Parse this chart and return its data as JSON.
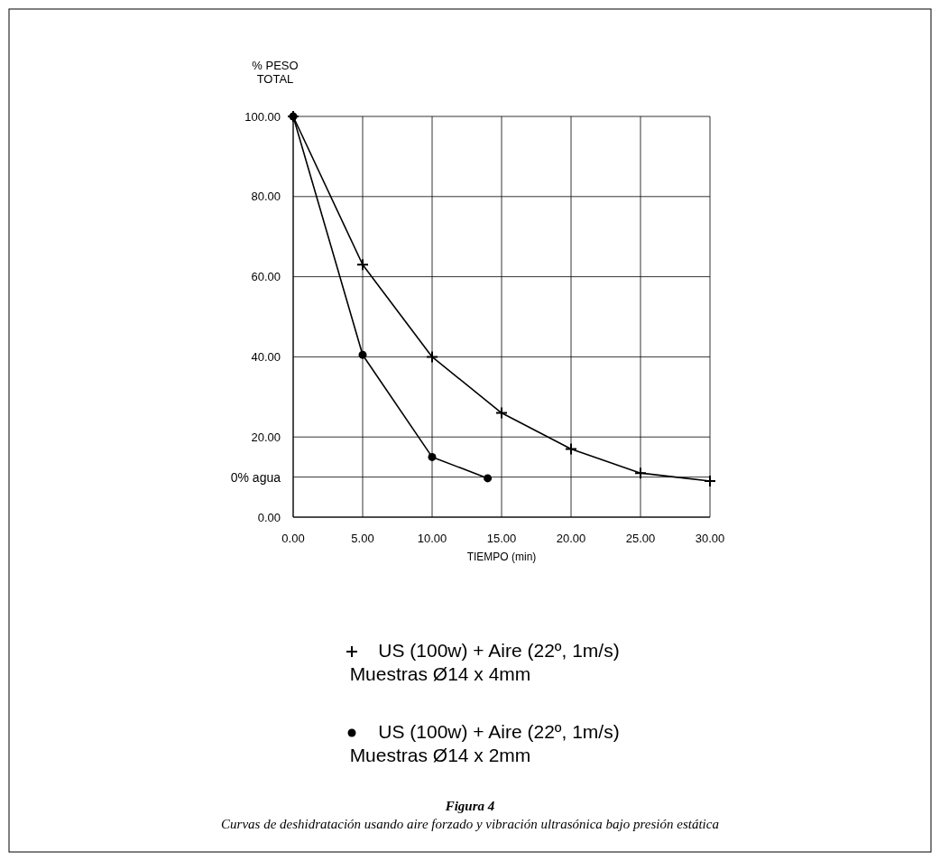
{
  "chart_data": {
    "type": "line",
    "title": "Figura 4",
    "ylabel": "% PESO\nTOTAL",
    "xlabel": "TIEMPO (min)",
    "annotations": [
      "Curvas de deshidratación usando aire forzado y vibración ultrasónica bajo presión estática"
    ],
    "xlim": [
      0,
      30
    ],
    "ylim": [
      0,
      100
    ],
    "xticks": [
      {
        "value": 0,
        "label": "0.00"
      },
      {
        "value": 5,
        "label": "5.00"
      },
      {
        "value": 10,
        "label": "10.00"
      },
      {
        "value": 15,
        "label": "15.00"
      },
      {
        "value": 20,
        "label": "20.00"
      },
      {
        "value": 25,
        "label": "25.00"
      },
      {
        "value": 30,
        "label": "30.00"
      }
    ],
    "yticks": [
      {
        "value": 0,
        "label": "0.00"
      },
      {
        "value": 20,
        "label": "20.00"
      },
      {
        "value": 40,
        "label": "40.00"
      },
      {
        "value": 60,
        "label": "60.00"
      },
      {
        "value": 80,
        "label": "80.00"
      },
      {
        "value": 100,
        "label": "100.00"
      }
    ],
    "grid": true,
    "legend": "bottom",
    "ref_lines": [
      {
        "axis": "y",
        "value": 10,
        "label": "0% agua",
        "color": "#000000"
      }
    ],
    "series": [
      {
        "name": "US (100w) + Aire (22º, 1m/s)\nMuestras Ø14 x 4mm",
        "color": "#000000",
        "marker": "cross",
        "x": [
          0,
          5,
          10,
          15,
          20,
          25,
          30
        ],
        "values": [
          100,
          63,
          40,
          26,
          17,
          11,
          9
        ]
      },
      {
        "name": "US (100w) + Aire (22º, 1m/s)\nMuestras Ø14 x 2mm",
        "color": "#000000",
        "marker": "circle",
        "x": [
          0,
          5,
          10,
          14
        ],
        "values": [
          100,
          40.5,
          15,
          9.7
        ]
      }
    ]
  }
}
